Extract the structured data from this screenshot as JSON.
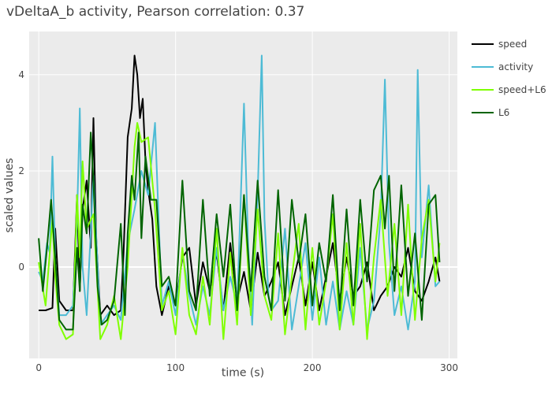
{
  "chart_data": {
    "type": "line",
    "title": "vDeltaA_b activity, Pearson correlation: 0.37",
    "xlabel": "time (s)",
    "ylabel": "scaled values",
    "xlim": [
      -7,
      306
    ],
    "ylim": [
      -1.9,
      4.9
    ],
    "xticks": [
      0,
      100,
      200,
      300
    ],
    "xtick_labels": [
      "0",
      "100",
      "200",
      "300"
    ],
    "yticks": [
      0,
      2,
      4
    ],
    "ytick_labels": [
      "0",
      "2",
      "4"
    ],
    "grid": true,
    "legend_position": "top-right",
    "series": [
      {
        "name": "speed",
        "color": "#000000",
        "x": [
          0,
          5,
          10,
          12,
          15,
          20,
          25,
          28,
          30,
          32,
          35,
          38,
          40,
          42,
          45,
          50,
          55,
          60,
          62,
          65,
          68,
          70,
          72,
          74,
          76,
          78,
          80,
          83,
          86,
          90,
          95,
          100,
          105,
          110,
          115,
          120,
          125,
          130,
          135,
          140,
          145,
          150,
          155,
          160,
          165,
          170,
          175,
          180,
          185,
          190,
          195,
          200,
          205,
          210,
          215,
          220,
          225,
          230,
          235,
          240,
          245,
          250,
          255,
          260,
          265,
          270,
          275,
          280,
          285,
          290,
          293
        ],
        "y": [
          -0.9,
          -0.9,
          -0.85,
          0.8,
          -0.7,
          -0.9,
          -0.9,
          1.5,
          -0.5,
          1.2,
          1.8,
          0.4,
          3.1,
          0.6,
          -1.0,
          -0.8,
          -1.0,
          -0.9,
          0.3,
          2.7,
          3.3,
          4.4,
          4.0,
          3.1,
          3.5,
          2.2,
          1.6,
          1.0,
          -0.4,
          -1.0,
          -0.4,
          -0.8,
          0.2,
          0.4,
          -0.8,
          0.1,
          -0.5,
          0.3,
          -0.9,
          0.5,
          -0.7,
          -0.1,
          -0.9,
          0.3,
          -0.6,
          -0.3,
          0.1,
          -1.0,
          -0.4,
          0.2,
          -0.8,
          0.1,
          -0.9,
          -0.2,
          0.5,
          -0.7,
          0.2,
          -0.6,
          -0.4,
          0.1,
          -0.9,
          -0.6,
          -0.4,
          0.0,
          -0.2,
          0.4,
          -0.5,
          -0.7,
          -0.3,
          0.2,
          -0.3
        ]
      },
      {
        "name": "activity",
        "color": "#4dbbd5",
        "x": [
          0,
          3,
          6,
          8,
          10,
          12,
          15,
          20,
          25,
          28,
          30,
          32,
          35,
          40,
          45,
          50,
          55,
          60,
          65,
          70,
          75,
          80,
          85,
          90,
          95,
          100,
          105,
          110,
          115,
          120,
          125,
          130,
          135,
          140,
          145,
          150,
          153,
          156,
          160,
          163,
          165,
          168,
          170,
          175,
          180,
          185,
          190,
          195,
          200,
          205,
          210,
          215,
          220,
          225,
          230,
          235,
          240,
          245,
          250,
          253,
          256,
          260,
          265,
          270,
          275,
          277,
          280,
          285,
          290,
          293
        ],
        "y": [
          -0.1,
          -0.3,
          0.5,
          0.3,
          2.3,
          0.2,
          -1.0,
          -1.0,
          -0.8,
          1.0,
          3.3,
          0.0,
          -1.0,
          1.9,
          -1.2,
          -1.0,
          -0.8,
          -1.1,
          0.5,
          1.2,
          2.0,
          1.5,
          3.0,
          -0.8,
          -0.3,
          -1.0,
          0.3,
          -0.6,
          -1.2,
          -0.4,
          -1.0,
          0.4,
          -0.9,
          -0.2,
          -0.8,
          3.4,
          0.5,
          -1.2,
          1.5,
          4.4,
          1.0,
          -0.6,
          -0.9,
          -0.7,
          0.8,
          -1.3,
          -0.4,
          0.5,
          -1.1,
          0.2,
          -1.2,
          -0.3,
          -1.3,
          -0.5,
          -1.2,
          0.4,
          -1.3,
          -0.7,
          1.1,
          3.9,
          0.5,
          -1.0,
          -0.4,
          -1.3,
          -0.3,
          4.1,
          0.2,
          1.7,
          -0.4,
          -0.3
        ]
      },
      {
        "name": "speed+L6",
        "color": "#7fff00",
        "x": [
          0,
          5,
          10,
          12,
          15,
          20,
          25,
          28,
          30,
          32,
          35,
          40,
          45,
          50,
          55,
          60,
          65,
          70,
          72,
          75,
          80,
          85,
          90,
          95,
          100,
          105,
          110,
          115,
          120,
          125,
          130,
          135,
          140,
          145,
          150,
          155,
          160,
          165,
          170,
          175,
          180,
          185,
          190,
          195,
          200,
          205,
          210,
          215,
          220,
          225,
          230,
          235,
          240,
          245,
          250,
          255,
          260,
          265,
          270,
          275,
          280,
          285,
          290,
          293
        ],
        "y": [
          0.1,
          -0.8,
          1.0,
          -0.2,
          -1.2,
          -1.5,
          -1.4,
          1.5,
          0.2,
          2.2,
          0.8,
          1.1,
          -1.5,
          -1.2,
          -0.6,
          -1.5,
          0.0,
          2.5,
          3.0,
          2.6,
          2.7,
          1.2,
          -0.9,
          -0.5,
          -1.4,
          0.4,
          -1.0,
          -1.4,
          -0.2,
          -1.2,
          0.8,
          -1.5,
          0.3,
          -1.2,
          1.5,
          -1.0,
          1.2,
          -0.6,
          -1.1,
          0.7,
          -1.4,
          -0.2,
          0.9,
          -1.3,
          0.4,
          -1.2,
          -0.3,
          1.1,
          -1.3,
          0.5,
          -1.2,
          0.9,
          -1.5,
          0.2,
          1.4,
          -0.6,
          0.9,
          -1.0,
          1.3,
          -1.1,
          0.6,
          1.4,
          -0.3,
          0.5
        ]
      },
      {
        "name": "L6",
        "color": "#006400",
        "x": [
          0,
          3,
          6,
          9,
          12,
          15,
          20,
          25,
          28,
          30,
          32,
          35,
          38,
          40,
          43,
          46,
          50,
          55,
          60,
          63,
          65,
          68,
          70,
          73,
          75,
          78,
          82,
          86,
          90,
          95,
          100,
          105,
          110,
          115,
          120,
          125,
          130,
          135,
          140,
          145,
          150,
          155,
          160,
          165,
          170,
          175,
          180,
          185,
          190,
          195,
          200,
          205,
          210,
          215,
          220,
          225,
          230,
          235,
          240,
          245,
          250,
          253,
          256,
          260,
          265,
          270,
          275,
          280,
          285,
          290,
          293
        ],
        "y": [
          0.6,
          -0.5,
          0.4,
          1.4,
          0.2,
          -1.1,
          -1.3,
          -1.3,
          0.4,
          -0.5,
          1.3,
          0.7,
          2.8,
          1.8,
          -0.4,
          -1.2,
          -1.1,
          -0.7,
          0.9,
          -1.0,
          0.7,
          1.9,
          1.4,
          2.8,
          0.6,
          2.3,
          1.4,
          1.4,
          -0.4,
          -0.2,
          -0.8,
          1.8,
          -0.5,
          -0.9,
          1.4,
          -0.6,
          1.1,
          -0.2,
          1.3,
          -0.9,
          1.5,
          -0.5,
          1.8,
          -0.2,
          -0.9,
          1.6,
          -0.7,
          1.4,
          0.1,
          1.1,
          -0.8,
          0.5,
          -0.3,
          1.5,
          -0.9,
          1.2,
          -0.8,
          1.4,
          -0.3,
          1.6,
          1.9,
          0.8,
          1.9,
          -0.5,
          1.7,
          -0.6,
          0.7,
          -1.1,
          1.3,
          1.5,
          0.1
        ]
      }
    ]
  }
}
